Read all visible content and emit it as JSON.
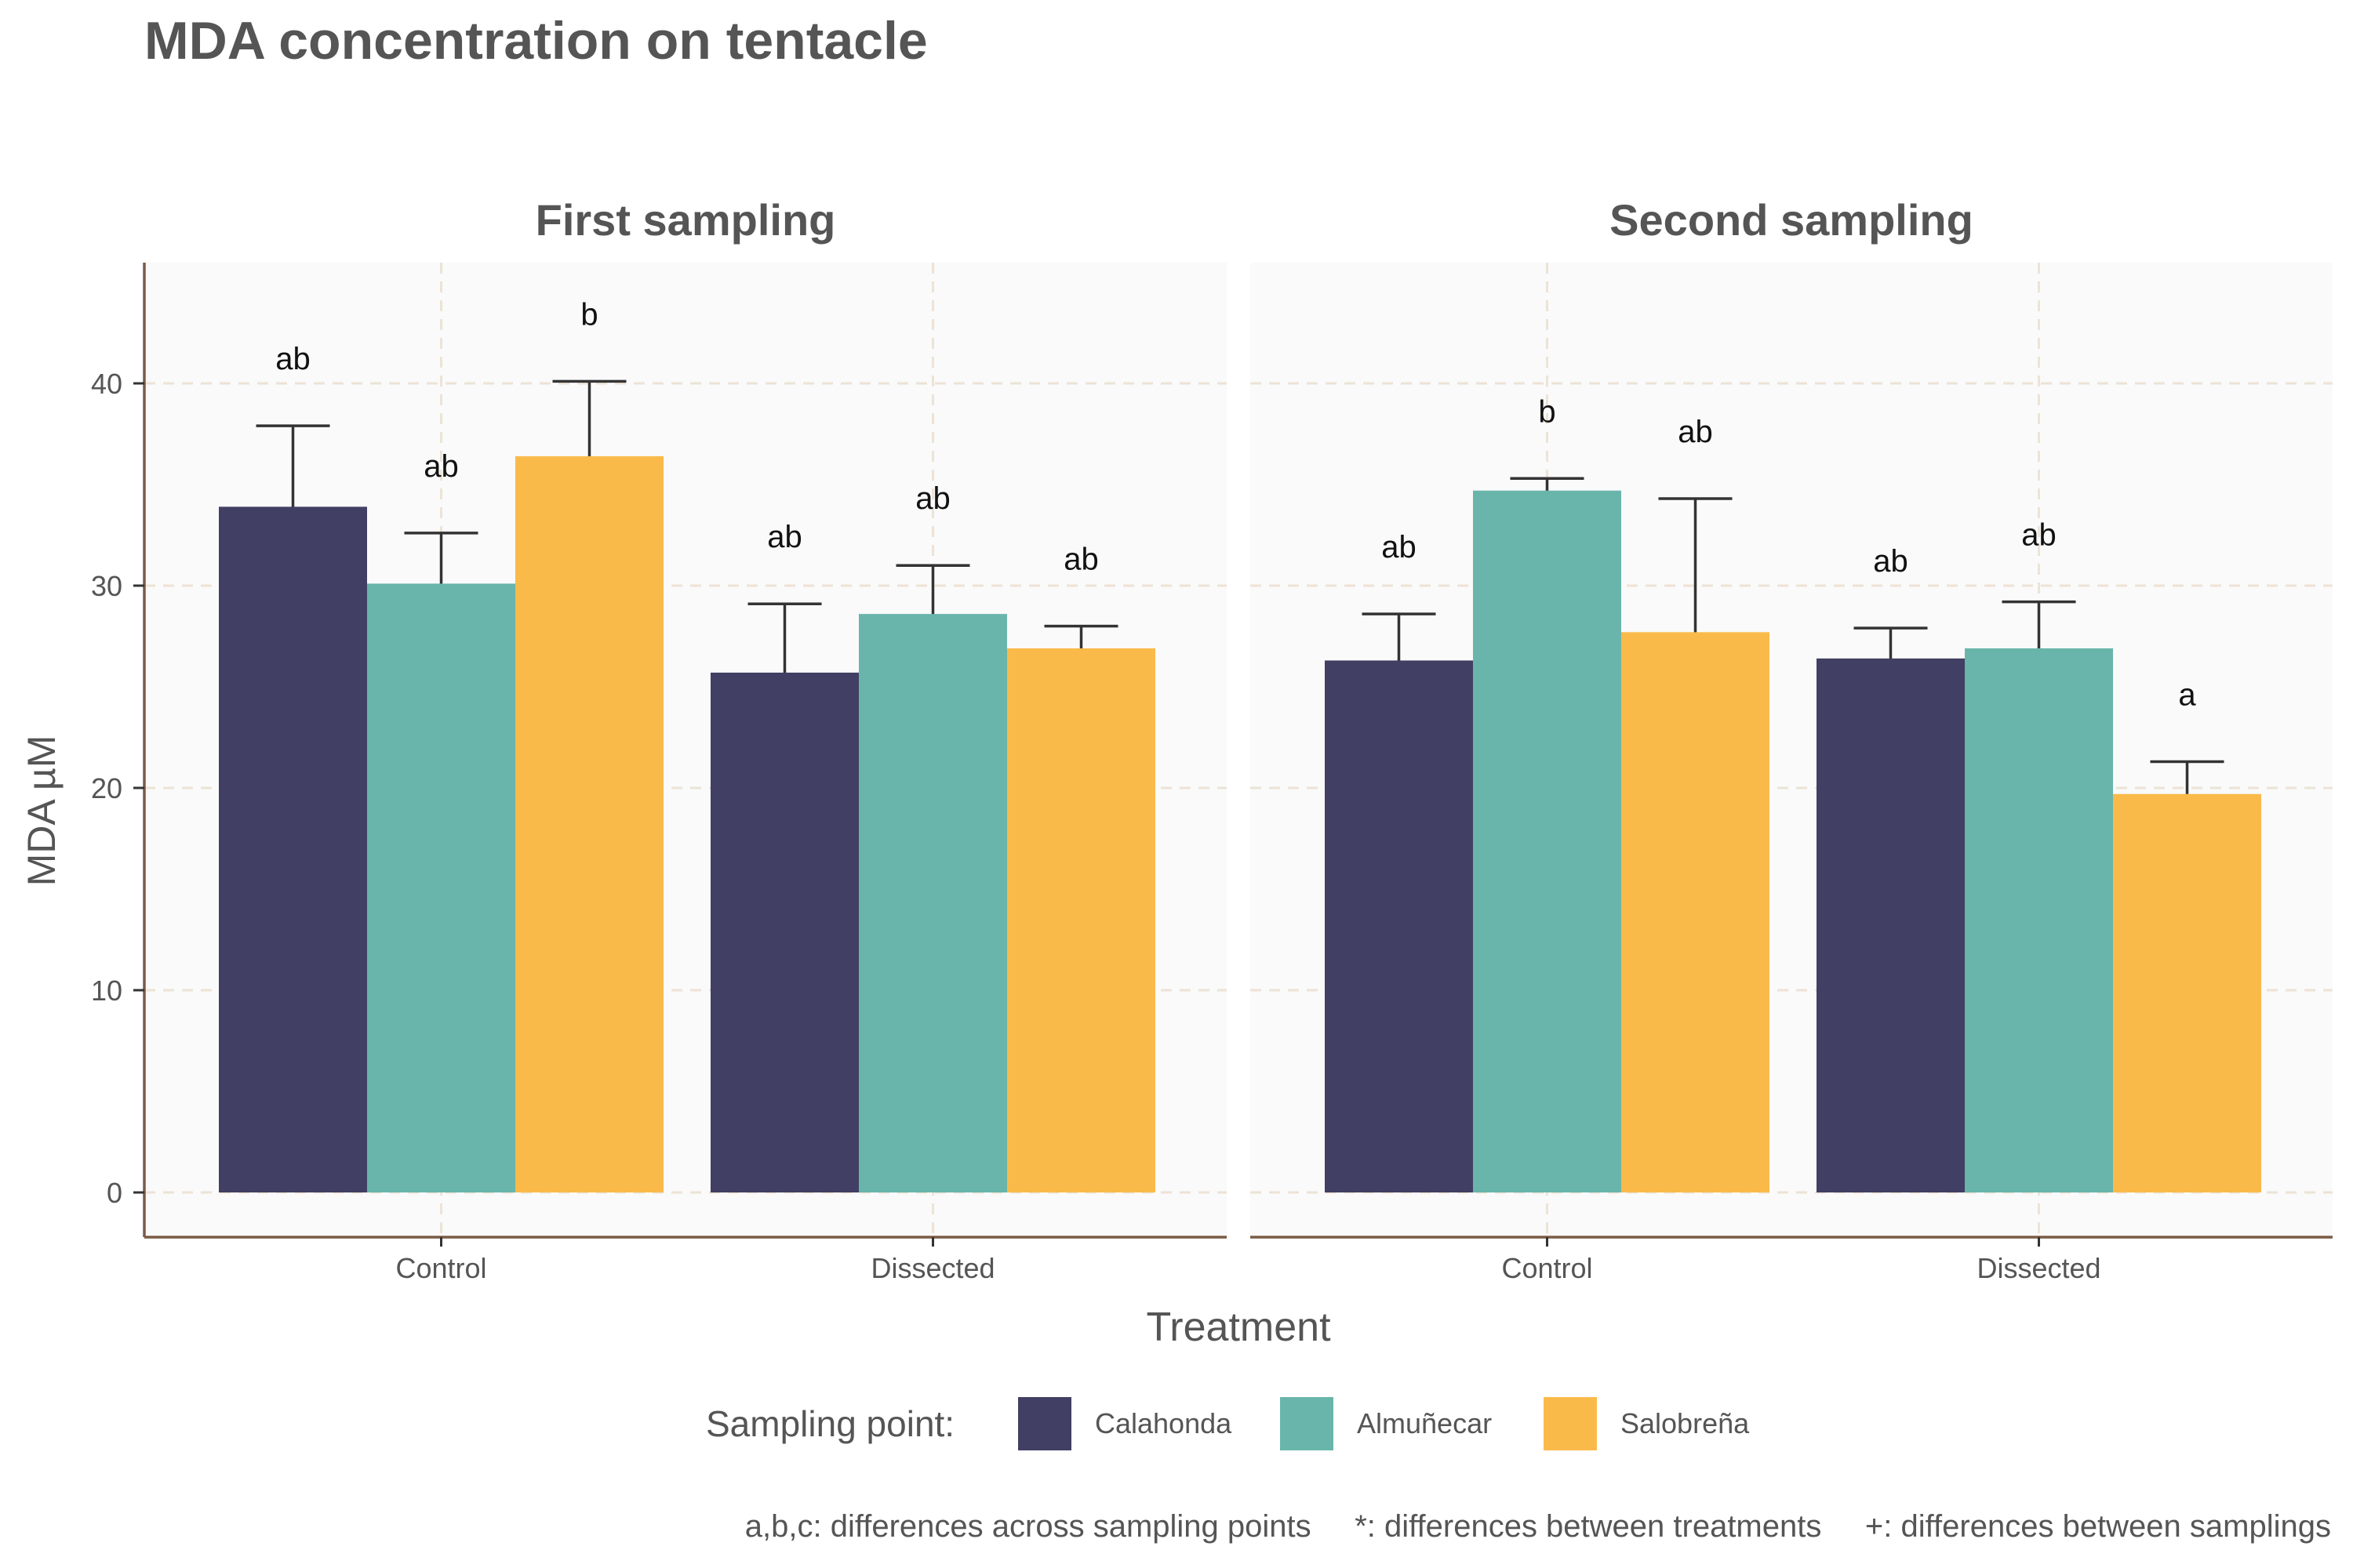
{
  "chart_data": {
    "type": "bar",
    "title": "MDA concentration on tentacle",
    "xlabel": "Treatment",
    "ylabel": "MDA µM",
    "ylim": [
      0,
      46
    ],
    "yticks": [
      0,
      10,
      20,
      30,
      40
    ],
    "grid": true,
    "legend_position": "bottom",
    "legend_title": "Sampling point:",
    "footnote": "a,b,c: differences across sampling points     *: differences between treatments     +: differences between samplings",
    "categories": [
      "Control",
      "Dissected"
    ],
    "series_names": [
      "Calahonda",
      "Almuñecar",
      "Salobreña"
    ],
    "colors": {
      "Calahonda": "#413F63",
      "Almuñecar": "#69B5AB",
      "Salobreña": "#FABA4A",
      "panel_bg": "#FAFAFA",
      "grid": "#EDE3D6",
      "axis_line": "#7A5B45",
      "errorbar": "#333333"
    },
    "facets": [
      {
        "title": "First sampling",
        "series": [
          {
            "name": "Calahonda",
            "values": [
              33.9,
              25.7
            ],
            "error_upper": [
              37.9,
              29.1
            ],
            "letters": [
              "ab",
              "ab"
            ]
          },
          {
            "name": "Almuñecar",
            "values": [
              30.1,
              28.6
            ],
            "error_upper": [
              32.6,
              31.0
            ],
            "letters": [
              "ab",
              "ab"
            ]
          },
          {
            "name": "Salobreña",
            "values": [
              36.4,
              26.9
            ],
            "error_upper": [
              40.1,
              28.0
            ],
            "letters": [
              "b",
              "ab"
            ]
          }
        ]
      },
      {
        "title": "Second sampling",
        "series": [
          {
            "name": "Calahonda",
            "values": [
              26.3,
              26.4
            ],
            "error_upper": [
              28.6,
              27.9
            ],
            "letters": [
              "ab",
              "ab"
            ]
          },
          {
            "name": "Almuñecar",
            "values": [
              34.7,
              26.9
            ],
            "error_upper": [
              35.3,
              29.2
            ],
            "letters": [
              "b",
              "ab"
            ]
          },
          {
            "name": "Salobreña",
            "values": [
              27.7,
              19.7
            ],
            "error_upper": [
              34.3,
              21.3
            ],
            "letters": [
              "ab",
              "a"
            ]
          }
        ]
      }
    ]
  }
}
